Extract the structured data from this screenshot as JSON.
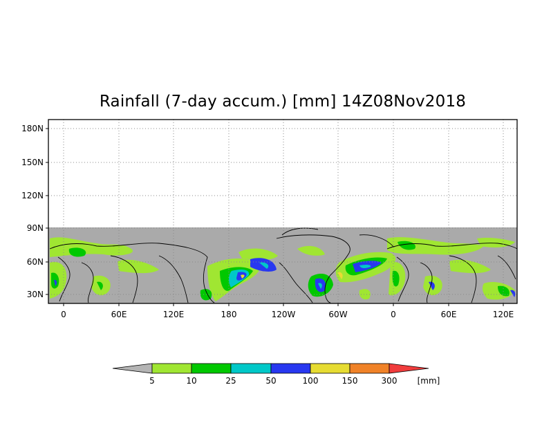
{
  "title": "Rainfall (7-day accum.) [mm] 14Z08Nov2018",
  "map": {
    "lat_labels": [
      "180N",
      "150N",
      "120N",
      "90N",
      "60N",
      "30N"
    ],
    "lon_labels": [
      "0",
      "60E",
      "120E",
      "180",
      "120W",
      "60W",
      "0",
      "60E",
      "120E"
    ],
    "grid": "dotted",
    "land_no_data_color": "#aaaaaa",
    "coastline_color": "#000000"
  },
  "legend": {
    "labels": [
      "5",
      "10",
      "25",
      "50",
      "100",
      "150",
      "300"
    ],
    "unit": "[mm]",
    "colors": [
      "#a0e632",
      "#00c800",
      "#00c8c8",
      "#2838f0",
      "#e6dc32",
      "#f08228",
      "#f03c3c"
    ],
    "below_color": "#b4b4b4"
  }
}
